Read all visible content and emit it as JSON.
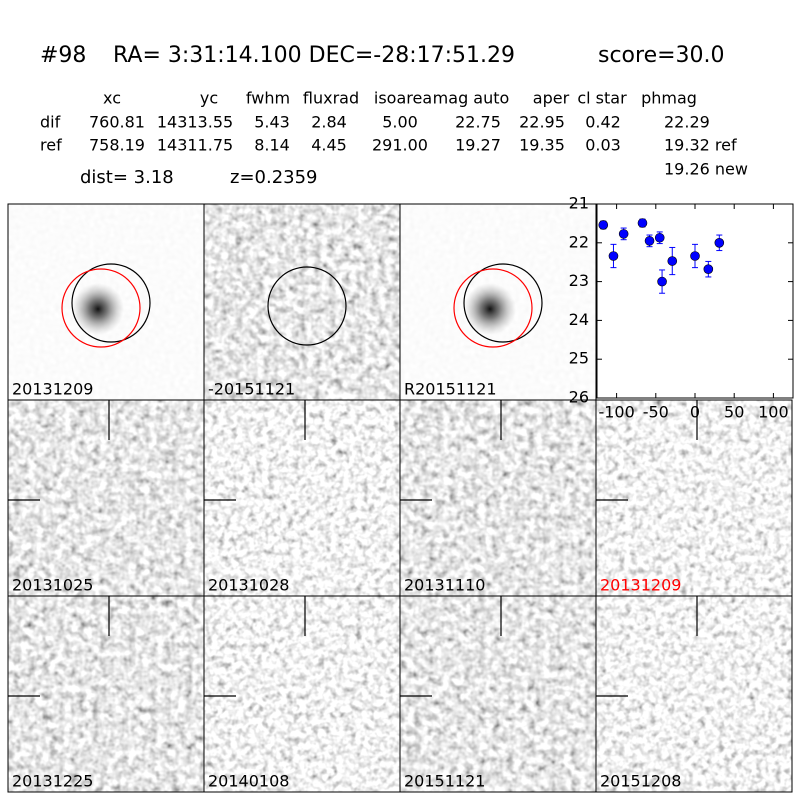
{
  "header": {
    "id": "#98",
    "coords": "RA= 3:31:14.100 DEC=-28:17:51.29",
    "score": "score=30.0",
    "dist": "dist=  3.18",
    "z": "z=0.2359"
  },
  "table": {
    "header": [
      "xc",
      "yc",
      "fwhm",
      "fluxrad",
      "isoarea",
      "mag auto",
      "aper",
      "cl star",
      "phmag"
    ],
    "rows": [
      {
        "label": "dif",
        "cells": [
          "760.81",
          "14313.55",
          "5.43",
          "2.84",
          "5.00",
          "22.75",
          "22.95",
          "0.42",
          "22.29"
        ]
      },
      {
        "label": "ref",
        "cells": [
          "758.19",
          "14311.75",
          "8.14",
          "4.45",
          "291.00",
          "19.27",
          "19.35",
          "0.03",
          "19.32 ref"
        ]
      }
    ],
    "extra": "19.26 new"
  },
  "stamps": [
    "20131209",
    "-20151121",
    "R20151121",
    "20131025",
    "20131028",
    "20131110",
    "20131209",
    "20131225",
    "20140108",
    "20151121",
    "20151208"
  ],
  "chart_data": {
    "type": "scatter",
    "x": [
      -117,
      -104,
      -91,
      -67,
      -58,
      -45,
      -42,
      -29,
      0,
      17,
      31
    ],
    "series": [
      {
        "color": "#0000ff",
        "values": [
          21.54,
          22.34,
          21.77,
          21.49,
          21.95,
          21.87,
          23.0,
          22.47,
          22.34,
          22.68,
          22.0
        ],
        "errors": [
          0.1,
          0.3,
          0.15,
          0.1,
          0.15,
          0.15,
          0.3,
          0.35,
          0.3,
          0.2,
          0.2
        ]
      }
    ],
    "xlim": [
      -125,
      125
    ],
    "xticks": [
      -100,
      -50,
      0,
      50,
      100
    ],
    "ylim": [
      26,
      21
    ],
    "yticks": [
      21,
      22,
      23,
      24,
      25,
      26
    ]
  }
}
